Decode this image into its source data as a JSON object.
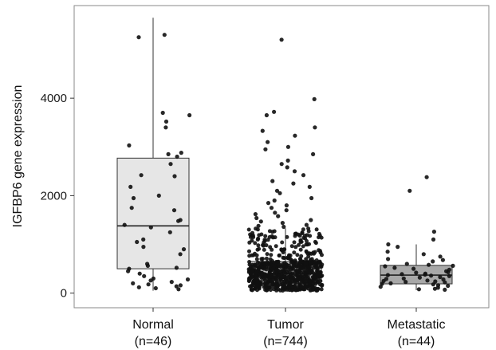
{
  "chart_data": {
    "type": "box",
    "title": "",
    "xlabel": "",
    "ylabel": "IGFBP6 gene expression",
    "ylim": [
      -300,
      5900
    ],
    "yticks": [
      0,
      2000,
      4000
    ],
    "grid": false,
    "categories": [
      "Normal",
      "Tumor",
      "Metastatic"
    ],
    "category_counts": [
      "(n=46)",
      "(n=744)",
      "(n=44)"
    ],
    "colors": {
      "box_fill": [
        "#e6e6e6",
        "#c4c4c4",
        "#a8a8a8"
      ],
      "box_stroke": "#333333",
      "points": "#111111"
    },
    "boxes": [
      {
        "category": "Normal",
        "min": 50,
        "q1": 500,
        "median": 1380,
        "q3": 2770,
        "max": 5650
      },
      {
        "category": "Tumor",
        "min": 30,
        "q1": 260,
        "median": 400,
        "q3": 650,
        "max": 1330
      },
      {
        "category": "Metastatic",
        "min": 60,
        "q1": 190,
        "median": 370,
        "q3": 570,
        "max": 1000
      }
    ],
    "outliers": {
      "Normal": [],
      "Tumor": [
        5200,
        3980,
        3720,
        3650,
        3400,
        3330,
        3230,
        3100,
        3000,
        2950,
        2850,
        2720,
        2650,
        2580,
        2500,
        2420,
        2300,
        2250,
        2180,
        2100,
        2050,
        1950,
        1900,
        1850,
        1800,
        1750,
        1700,
        1650,
        1620,
        1580,
        1540,
        1500,
        1470,
        1440,
        1400,
        1380,
        1360
      ],
      "Metastatic": [
        2380,
        2100,
        1260,
        1100
      ]
    },
    "point_groups": [
      {
        "category": "Normal",
        "values": [
          5300,
          5250,
          3700,
          3650,
          3520,
          3400,
          3030,
          2880,
          2850,
          2800,
          2650,
          2420,
          2400,
          2180,
          2000,
          1950,
          1750,
          1700,
          1500,
          1480,
          1400,
          1350,
          1250,
          1100,
          1050,
          950,
          900,
          800,
          600,
          560,
          520,
          500,
          450,
          400,
          350,
          300,
          280,
          260,
          230,
          200,
          180,
          160,
          140,
          120,
          100,
          80
        ]
      },
      {
        "category": "Tumor",
        "count": 744,
        "core_min": 30,
        "core_max": 1330,
        "core_low": 260,
        "core_high": 650
      },
      {
        "category": "Metastatic",
        "values": [
          1000,
          950,
          850,
          800,
          750,
          700,
          680,
          650,
          600,
          580,
          560,
          550,
          520,
          500,
          480,
          450,
          430,
          420,
          400,
          390,
          380,
          370,
          360,
          350,
          330,
          320,
          300,
          290,
          280,
          260,
          250,
          240,
          230,
          220,
          200,
          190,
          180,
          160,
          150,
          130,
          110,
          90,
          80,
          70
        ]
      }
    ]
  }
}
